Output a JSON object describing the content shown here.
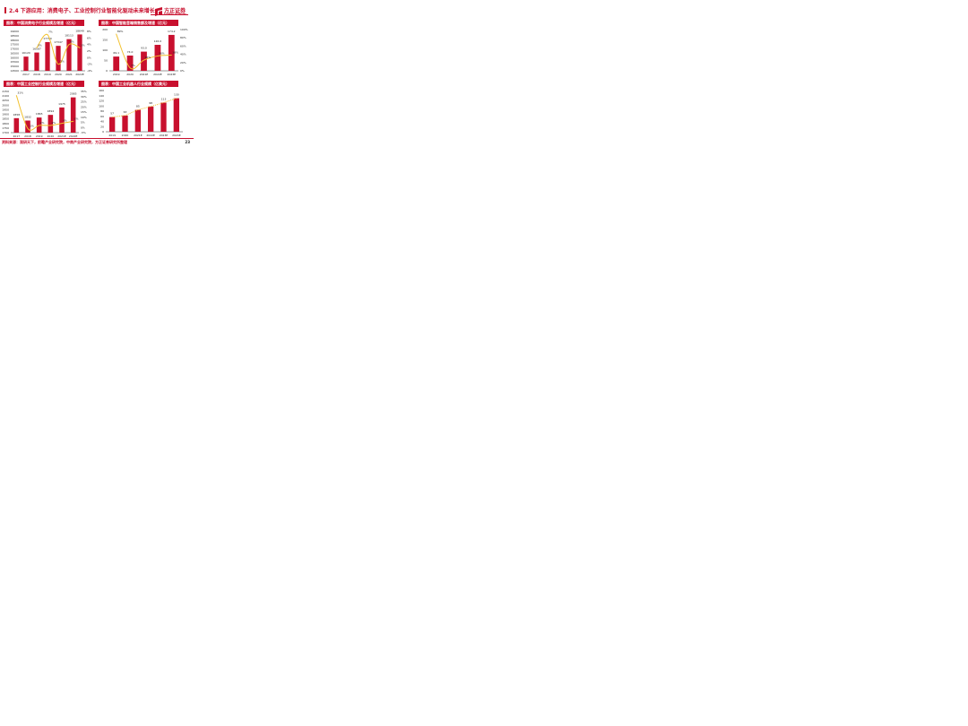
{
  "header": {
    "title": "2.4 下游应用：消费电子、工业控制行业智能化驱动未来增长",
    "logo_cn": "方正证券",
    "logo_en": "FOUNDER SECURITIES"
  },
  "footer": {
    "source": "资料来源：观研天下，前瞻产业研究院，中商产业研究院，方正证券研究所整理",
    "page": "23"
  },
  "colors": {
    "bar": "#c8102e",
    "line": "#f2c12e",
    "header": "#c8102e"
  },
  "chart_data": [
    {
      "id": "c1",
      "type": "bar+line",
      "title": "图表：中国消费电子行业规模及增速（亿元）",
      "categories": [
        "2017",
        "2018",
        "2019",
        "2020",
        "2021",
        "2022E"
      ],
      "bars": [
        16120,
        16587,
        17780,
        17347,
        18113,
        18649
      ],
      "bar_labels": [
        "16120",
        "16587",
        "17780",
        "17347",
        "18113",
        "18649"
      ],
      "line": [
        null,
        3,
        7,
        -2,
        4,
        3
      ],
      "line_labels": [
        "",
        "3%",
        "7%",
        "-2%",
        "4%",
        "3%"
      ],
      "left_axis": {
        "min": 14500,
        "max": 19000,
        "step": 500,
        "ticks": [
          "14500",
          "15000",
          "15500",
          "16000",
          "16500",
          "17000",
          "17500",
          "18000",
          "18500",
          "19000"
        ]
      },
      "right_axis": {
        "min": -4,
        "max": 8,
        "step": 2,
        "ticks": [
          "-4%",
          "-2%",
          "0%",
          "2%",
          "4%",
          "6%",
          "8%"
        ]
      },
      "line_style": "solid"
    },
    {
      "id": "c2",
      "type": "bar+line",
      "title": "图表：中国智能音箱销售额及增速（亿元）",
      "categories": [
        "2019",
        "2020",
        "2021E",
        "2022E",
        "2023E"
      ],
      "bars": [
        69.1,
        74.0,
        93.0,
        126.0,
        174.2
      ],
      "bar_labels": [
        "69.1",
        "74.0",
        "93.0",
        "126.0",
        "174.2"
      ],
      "line": [
        89,
        7,
        26,
        36,
        38
      ],
      "line_labels": [
        "89%",
        "7%",
        "26%",
        "36%",
        "38%"
      ],
      "left_axis": {
        "min": 0,
        "max": 200,
        "step": 50,
        "ticks": [
          "0",
          "50",
          "100",
          "150",
          "200"
        ]
      },
      "right_axis": {
        "min": 0,
        "max": 100,
        "step": 20,
        "ticks": [
          "0%",
          "20%",
          "40%",
          "60%",
          "80%",
          "100%"
        ]
      },
      "line_style": "solid"
    },
    {
      "id": "c3",
      "type": "bar+line",
      "title": "图表：中国工业控制行业规模及增速（亿元）",
      "categories": [
        "2017",
        "2018",
        "2019",
        "2020",
        "2021E",
        "2022E"
      ],
      "bars": [
        1858,
        1832,
        1865,
        1894,
        1975,
        2085
      ],
      "bar_labels": [
        "1858",
        "1832",
        "1865",
        "1894",
        "1975",
        "2085"
      ],
      "line": [
        31,
        -1,
        2,
        2,
        4,
        6
      ],
      "line_labels": [
        "31%",
        "-1%",
        "2%",
        "2%",
        "4%",
        "6%"
      ],
      "left_axis": {
        "min": 1700,
        "max": 2150,
        "step": 50,
        "ticks": [
          "1700",
          "1750",
          "1800",
          "1850",
          "1900",
          "1950",
          "2000",
          "2050",
          "2100",
          "2150"
        ]
      },
      "right_axis": {
        "min": -5,
        "max": 35,
        "step": 5,
        "ticks": [
          "-5%",
          "0%",
          "5%",
          "10%",
          "15%",
          "20%",
          "25%",
          "30%",
          "35%"
        ]
      },
      "line_style": "solid"
    },
    {
      "id": "c4",
      "type": "bar+trend",
      "title": "图表：中国工业机器人行业规模（亿美元）",
      "categories": [
        "2019",
        "2020",
        "2021E",
        "2022E",
        "2023E",
        "2024E"
      ],
      "bars": [
        57,
        63,
        85,
        98,
        113,
        130
      ],
      "bar_labels": [
        "57",
        "63",
        "85",
        "98",
        "113",
        "130"
      ],
      "left_axis": {
        "min": 0,
        "max": 160,
        "step": 20,
        "ticks": [
          "0",
          "20",
          "40",
          "60",
          "80",
          "100",
          "120",
          "140",
          "160"
        ]
      },
      "line_style": "dotted-trend"
    }
  ]
}
